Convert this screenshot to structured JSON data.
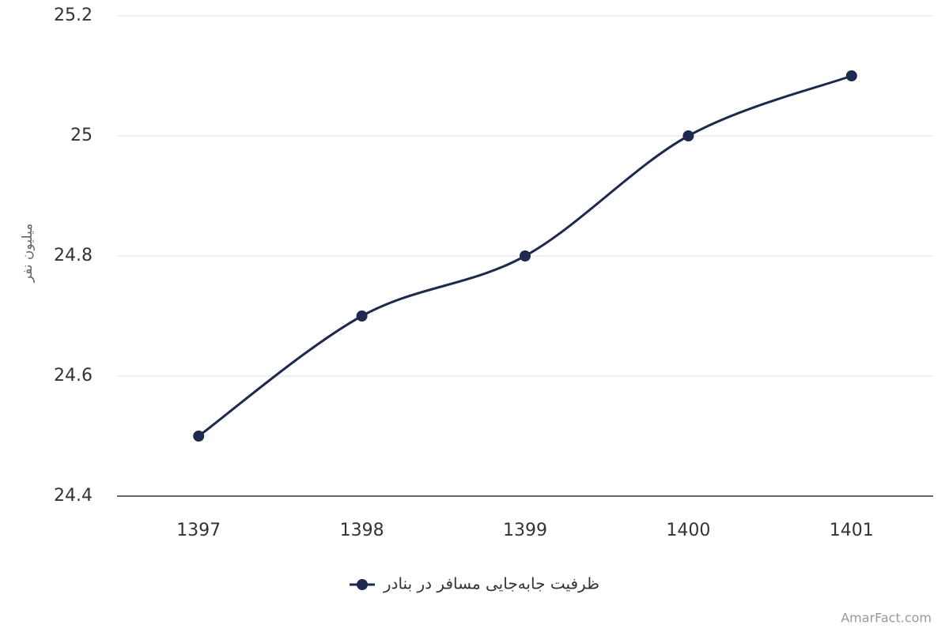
{
  "chart_data": {
    "type": "line",
    "y_label": "میلیون نفر",
    "categories": [
      "1397",
      "1398",
      "1399",
      "1400",
      "1401"
    ],
    "series": [
      {
        "name": "ظرفیت جابه‌جایی مسافر در بنادر",
        "color": "#1b2a4e",
        "values": [
          24.5,
          24.7,
          24.8,
          25,
          25.1
        ]
      }
    ],
    "ylim": [
      24.4,
      25.2
    ],
    "yticks": [
      24.4,
      24.6,
      24.8,
      25,
      25.2
    ],
    "grid": true,
    "smooth": true,
    "legend": "bottom",
    "credit": "AmarFact.com"
  }
}
